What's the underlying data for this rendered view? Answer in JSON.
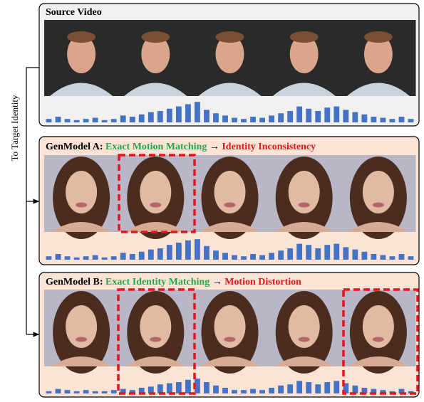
{
  "side_label": "To Target Identity",
  "panels": [
    {
      "title_parts": [
        {
          "text": "Source Video",
          "color": "#000000"
        }
      ],
      "bars": [
        3,
        5,
        3,
        2,
        3,
        4,
        2,
        3,
        6,
        5,
        7,
        9,
        10,
        12,
        14,
        16,
        18,
        11,
        8,
        6,
        4,
        3,
        5,
        4,
        6,
        8,
        10,
        14,
        12,
        10,
        13,
        14,
        11,
        9,
        7,
        5,
        4,
        3,
        5,
        3
      ]
    },
    {
      "title_parts": [
        {
          "text": "GenModel A:",
          "color": "#000000"
        },
        {
          "text": "Exact Motion Matching",
          "color": "#22a64a"
        },
        {
          "text": "→",
          "color": "#000000"
        },
        {
          "text": "Identity Inconsistency",
          "color": "#e8141c"
        }
      ],
      "bars": [
        3,
        5,
        3,
        2,
        3,
        4,
        2,
        3,
        6,
        5,
        7,
        9,
        10,
        13,
        15,
        17,
        18,
        12,
        8,
        6,
        4,
        3,
        5,
        4,
        6,
        8,
        10,
        14,
        13,
        10,
        13,
        14,
        11,
        9,
        7,
        5,
        4,
        3,
        5,
        3
      ]
    },
    {
      "title_parts": [
        {
          "text": "GenModel B:",
          "color": "#000000"
        },
        {
          "text": "Exact Identity Matching",
          "color": "#22a64a"
        },
        {
          "text": "→",
          "color": "#000000"
        },
        {
          "text": "Motion Distortion",
          "color": "#e8141c"
        }
      ],
      "bars": [
        2,
        4,
        3,
        2,
        3,
        2,
        2,
        3,
        4,
        3,
        5,
        6,
        8,
        9,
        10,
        12,
        13,
        10,
        7,
        5,
        3,
        3,
        4,
        3,
        5,
        7,
        8,
        11,
        10,
        8,
        10,
        11,
        9,
        7,
        5,
        4,
        3,
        2,
        4,
        2
      ]
    }
  ]
}
